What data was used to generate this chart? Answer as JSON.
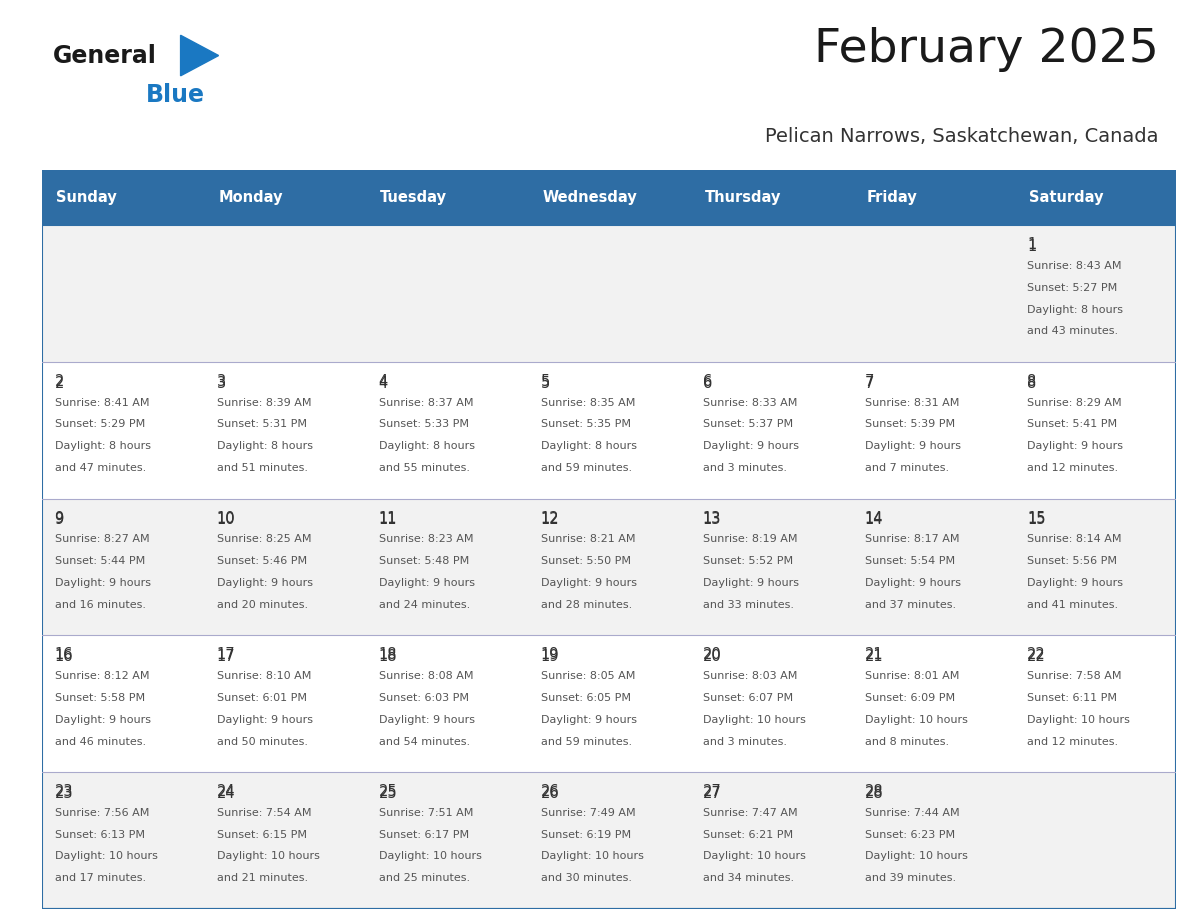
{
  "title": "February 2025",
  "subtitle": "Pelican Narrows, Saskatchewan, Canada",
  "header_bg_color": "#2E6DA4",
  "header_text_color": "#FFFFFF",
  "day_names": [
    "Sunday",
    "Monday",
    "Tuesday",
    "Wednesday",
    "Thursday",
    "Friday",
    "Saturday"
  ],
  "row0_bg": "#F2F2F2",
  "row1_bg": "#FFFFFF",
  "row2_bg": "#F2F2F2",
  "row3_bg": "#FFFFFF",
  "row4_bg": "#F2F2F2",
  "border_color": "#2E6DA4",
  "separator_color": "#AAAACC",
  "day_num_color": "#333333",
  "text_color": "#555555",
  "logo_color1": "#1a1a1a",
  "logo_color2": "#1a78c2",
  "calendar": [
    [
      {
        "day": null,
        "sunrise": null,
        "sunset": null,
        "daylight": null
      },
      {
        "day": null,
        "sunrise": null,
        "sunset": null,
        "daylight": null
      },
      {
        "day": null,
        "sunrise": null,
        "sunset": null,
        "daylight": null
      },
      {
        "day": null,
        "sunrise": null,
        "sunset": null,
        "daylight": null
      },
      {
        "day": null,
        "sunrise": null,
        "sunset": null,
        "daylight": null
      },
      {
        "day": null,
        "sunrise": null,
        "sunset": null,
        "daylight": null
      },
      {
        "day": 1,
        "sunrise": "8:43 AM",
        "sunset": "5:27 PM",
        "daylight": "8 hours\nand 43 minutes."
      }
    ],
    [
      {
        "day": 2,
        "sunrise": "8:41 AM",
        "sunset": "5:29 PM",
        "daylight": "8 hours\nand 47 minutes."
      },
      {
        "day": 3,
        "sunrise": "8:39 AM",
        "sunset": "5:31 PM",
        "daylight": "8 hours\nand 51 minutes."
      },
      {
        "day": 4,
        "sunrise": "8:37 AM",
        "sunset": "5:33 PM",
        "daylight": "8 hours\nand 55 minutes."
      },
      {
        "day": 5,
        "sunrise": "8:35 AM",
        "sunset": "5:35 PM",
        "daylight": "8 hours\nand 59 minutes."
      },
      {
        "day": 6,
        "sunrise": "8:33 AM",
        "sunset": "5:37 PM",
        "daylight": "9 hours\nand 3 minutes."
      },
      {
        "day": 7,
        "sunrise": "8:31 AM",
        "sunset": "5:39 PM",
        "daylight": "9 hours\nand 7 minutes."
      },
      {
        "day": 8,
        "sunrise": "8:29 AM",
        "sunset": "5:41 PM",
        "daylight": "9 hours\nand 12 minutes."
      }
    ],
    [
      {
        "day": 9,
        "sunrise": "8:27 AM",
        "sunset": "5:44 PM",
        "daylight": "9 hours\nand 16 minutes."
      },
      {
        "day": 10,
        "sunrise": "8:25 AM",
        "sunset": "5:46 PM",
        "daylight": "9 hours\nand 20 minutes."
      },
      {
        "day": 11,
        "sunrise": "8:23 AM",
        "sunset": "5:48 PM",
        "daylight": "9 hours\nand 24 minutes."
      },
      {
        "day": 12,
        "sunrise": "8:21 AM",
        "sunset": "5:50 PM",
        "daylight": "9 hours\nand 28 minutes."
      },
      {
        "day": 13,
        "sunrise": "8:19 AM",
        "sunset": "5:52 PM",
        "daylight": "9 hours\nand 33 minutes."
      },
      {
        "day": 14,
        "sunrise": "8:17 AM",
        "sunset": "5:54 PM",
        "daylight": "9 hours\nand 37 minutes."
      },
      {
        "day": 15,
        "sunrise": "8:14 AM",
        "sunset": "5:56 PM",
        "daylight": "9 hours\nand 41 minutes."
      }
    ],
    [
      {
        "day": 16,
        "sunrise": "8:12 AM",
        "sunset": "5:58 PM",
        "daylight": "9 hours\nand 46 minutes."
      },
      {
        "day": 17,
        "sunrise": "8:10 AM",
        "sunset": "6:01 PM",
        "daylight": "9 hours\nand 50 minutes."
      },
      {
        "day": 18,
        "sunrise": "8:08 AM",
        "sunset": "6:03 PM",
        "daylight": "9 hours\nand 54 minutes."
      },
      {
        "day": 19,
        "sunrise": "8:05 AM",
        "sunset": "6:05 PM",
        "daylight": "9 hours\nand 59 minutes."
      },
      {
        "day": 20,
        "sunrise": "8:03 AM",
        "sunset": "6:07 PM",
        "daylight": "10 hours\nand 3 minutes."
      },
      {
        "day": 21,
        "sunrise": "8:01 AM",
        "sunset": "6:09 PM",
        "daylight": "10 hours\nand 8 minutes."
      },
      {
        "day": 22,
        "sunrise": "7:58 AM",
        "sunset": "6:11 PM",
        "daylight": "10 hours\nand 12 minutes."
      }
    ],
    [
      {
        "day": 23,
        "sunrise": "7:56 AM",
        "sunset": "6:13 PM",
        "daylight": "10 hours\nand 17 minutes."
      },
      {
        "day": 24,
        "sunrise": "7:54 AM",
        "sunset": "6:15 PM",
        "daylight": "10 hours\nand 21 minutes."
      },
      {
        "day": 25,
        "sunrise": "7:51 AM",
        "sunset": "6:17 PM",
        "daylight": "10 hours\nand 25 minutes."
      },
      {
        "day": 26,
        "sunrise": "7:49 AM",
        "sunset": "6:19 PM",
        "daylight": "10 hours\nand 30 minutes."
      },
      {
        "day": 27,
        "sunrise": "7:47 AM",
        "sunset": "6:21 PM",
        "daylight": "10 hours\nand 34 minutes."
      },
      {
        "day": 28,
        "sunrise": "7:44 AM",
        "sunset": "6:23 PM",
        "daylight": "10 hours\nand 39 minutes."
      },
      {
        "day": null,
        "sunrise": null,
        "sunset": null,
        "daylight": null
      }
    ]
  ]
}
